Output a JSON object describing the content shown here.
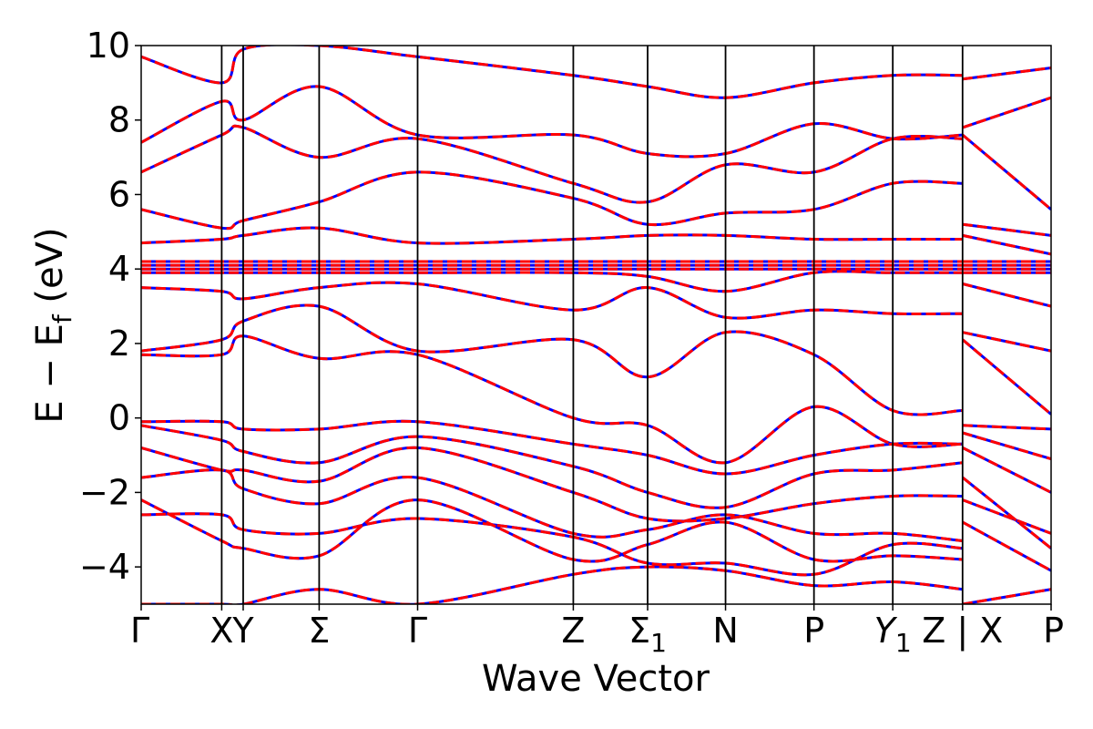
{
  "chart_data": {
    "type": "line",
    "title": "",
    "xlabel": "Wave Vector",
    "ylabel": "E − E_f (eV)",
    "ylabel_parts": {
      "lead": "E − E",
      "sub": "f",
      "tail": " (eV)"
    },
    "ylim": [
      -5,
      10
    ],
    "yticks": [
      -4,
      -2,
      0,
      2,
      4,
      6,
      8,
      10
    ],
    "ytick_labels": [
      "−4",
      "−2",
      "0",
      "2",
      "4",
      "6",
      "8",
      "10"
    ],
    "xlim": [
      0,
      1
    ],
    "xticks": [
      {
        "x": 0.0,
        "label": "Γ"
      },
      {
        "x": 0.0885,
        "label": "X"
      },
      {
        "x": 0.1121,
        "label": "Y"
      },
      {
        "x": 0.1956,
        "label": "Σ"
      },
      {
        "x": 0.3038,
        "label": "Γ"
      },
      {
        "x": 0.4749,
        "label": "Z"
      },
      {
        "x": 0.5566,
        "label": "Σ",
        "sub": "1"
      },
      {
        "x": 0.6422,
        "label": "N"
      },
      {
        "x": 0.7394,
        "label": "P"
      },
      {
        "x": 0.826,
        "label": "Y",
        "sub": "1",
        "italic": true
      },
      {
        "x": 0.9027,
        "label": "Z | X"
      },
      {
        "x": 1.0,
        "label": "P"
      }
    ],
    "grid": false,
    "legend": "none",
    "series": [
      {
        "style": "solid",
        "color": "#0000ff",
        "linewidth": 3
      },
      {
        "style": "dashed",
        "color": "#ff0000",
        "linewidth": 3
      }
    ],
    "bands_x": [
      0,
      0.0885,
      0.1121,
      0.1956,
      0.3038,
      0.4749,
      0.5566,
      0.6422,
      0.7394,
      0.826,
      0.9027,
      0.9028,
      1.0
    ],
    "bands": [
      [
        -5.0,
        -5.0,
        -5.0,
        -4.6,
        -5.0,
        -4.2,
        -4.0,
        -4.1,
        -4.5,
        -4.4,
        -4.6,
        -5.0,
        -4.6
      ],
      [
        -2.6,
        -2.6,
        -3.0,
        -3.1,
        -2.7,
        -3.2,
        -3.9,
        -3.9,
        -4.2,
        -3.4,
        -3.5,
        -2.8,
        -4.1
      ],
      [
        -2.2,
        -3.3,
        -3.5,
        -3.7,
        -2.2,
        -3.8,
        -3.4,
        -2.8,
        -3.8,
        -3.7,
        -3.8,
        -2.2,
        -3.1
      ],
      [
        -1.6,
        -1.4,
        -1.9,
        -2.3,
        -1.6,
        -3.1,
        -3.0,
        -2.6,
        -3.1,
        -3.1,
        -3.3,
        -1.6,
        -3.5
      ],
      [
        -0.8,
        -1.4,
        -1.4,
        -1.7,
        -0.8,
        -2.0,
        -2.7,
        -2.7,
        -2.3,
        -2.1,
        -2.1,
        -0.8,
        -2.0
      ],
      [
        -0.2,
        -0.6,
        -0.9,
        -1.2,
        -0.5,
        -1.3,
        -2.0,
        -2.4,
        -1.5,
        -1.4,
        -1.2,
        -0.4,
        -1.1
      ],
      [
        -0.1,
        -0.1,
        -0.3,
        -0.3,
        -0.1,
        -0.7,
        -1.0,
        -1.5,
        -1.0,
        -0.7,
        -0.7,
        -0.2,
        -0.3
      ],
      [
        1.7,
        1.7,
        2.2,
        1.6,
        1.7,
        0.0,
        -0.2,
        -1.2,
        0.3,
        -0.7,
        -0.7,
        2.1,
        0.1
      ],
      [
        1.8,
        2.1,
        2.6,
        3.0,
        1.8,
        2.1,
        1.1,
        2.3,
        1.7,
        0.2,
        0.2,
        2.3,
        1.8
      ],
      [
        3.5,
        3.4,
        3.2,
        3.5,
        3.6,
        2.9,
        3.5,
        2.7,
        2.9,
        2.8,
        2.8,
        3.6,
        3.0
      ],
      [
        3.9,
        3.9,
        3.9,
        3.9,
        3.9,
        3.9,
        3.8,
        3.4,
        3.9,
        3.9,
        3.9,
        3.9,
        3.9
      ],
      [
        4.0,
        4.0,
        4.0,
        4.0,
        4.0,
        4.0,
        4.0,
        4.0,
        4.0,
        4.0,
        4.0,
        4.0,
        4.0
      ],
      [
        4.1,
        4.1,
        4.1,
        4.1,
        4.1,
        4.1,
        4.1,
        4.1,
        4.1,
        4.1,
        4.1,
        4.1,
        4.1
      ],
      [
        4.2,
        4.2,
        4.2,
        4.2,
        4.2,
        4.2,
        4.2,
        4.2,
        4.2,
        4.2,
        4.2,
        4.2,
        4.2
      ],
      [
        4.7,
        4.8,
        4.9,
        5.1,
        4.7,
        4.8,
        4.9,
        4.9,
        4.8,
        4.8,
        4.8,
        4.9,
        4.4
      ],
      [
        5.6,
        5.1,
        5.3,
        5.8,
        6.6,
        5.9,
        5.2,
        5.5,
        5.6,
        6.3,
        6.3,
        5.2,
        4.9
      ],
      [
        6.6,
        7.6,
        7.8,
        7.0,
        7.5,
        6.3,
        5.8,
        6.8,
        6.6,
        7.5,
        7.5,
        7.6,
        5.6
      ],
      [
        7.4,
        8.5,
        8.0,
        8.9,
        7.6,
        7.6,
        7.1,
        7.1,
        7.9,
        7.5,
        7.6,
        7.8,
        8.6
      ],
      [
        9.7,
        9.0,
        9.9,
        10.0,
        9.7,
        9.2,
        8.9,
        8.6,
        9.0,
        9.2,
        9.2,
        9.1,
        9.4
      ]
    ]
  }
}
